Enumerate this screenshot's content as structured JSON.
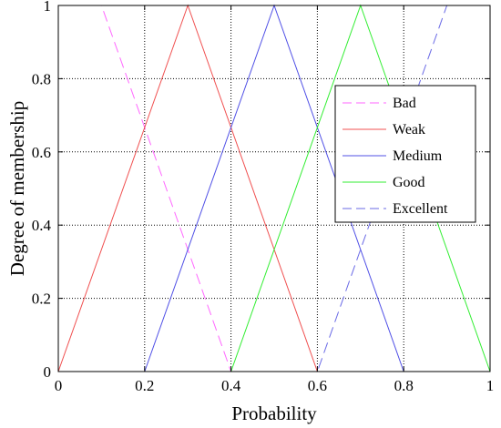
{
  "chart_data": {
    "type": "line",
    "title": "",
    "xlabel": "Probability",
    "ylabel": "Degree of membership",
    "xlim": [
      0,
      1
    ],
    "ylim": [
      0,
      1
    ],
    "x_ticks": [
      0,
      0.2,
      0.4,
      0.6,
      0.8,
      1
    ],
    "y_ticks": [
      0,
      0.2,
      0.4,
      0.6,
      0.8,
      1
    ],
    "x_tick_labels": [
      "0",
      "0.2",
      "0.4",
      "0.6",
      "0.8",
      "1"
    ],
    "y_tick_labels": [
      "0",
      "0.2",
      "0.4",
      "0.6",
      "0.8",
      "1"
    ],
    "grid": true,
    "legend_position": "right",
    "series": [
      {
        "name": "Bad",
        "color": "#ff66ff",
        "dash": "dashed",
        "x": [
          0,
          0.1,
          0.4,
          1
        ],
        "y": [
          1,
          1,
          0,
          0
        ]
      },
      {
        "name": "Weak",
        "color": "#f05050",
        "dash": "solid",
        "x": [
          0,
          0.3,
          0.6,
          1
        ],
        "y": [
          0,
          1,
          0,
          0
        ]
      },
      {
        "name": "Medium",
        "color": "#5050e6",
        "dash": "solid",
        "x": [
          0,
          0.2,
          0.5,
          0.8,
          1
        ],
        "y": [
          0,
          0,
          1,
          0,
          0
        ]
      },
      {
        "name": "Good",
        "color": "#33ee33",
        "dash": "solid",
        "x": [
          0,
          0.4,
          0.7,
          1
        ],
        "y": [
          0,
          0,
          1,
          0
        ]
      },
      {
        "name": "Excellent",
        "color": "#6a6ae6",
        "dash": "dashed",
        "x": [
          0,
          0.6,
          0.9,
          1
        ],
        "y": [
          0,
          0,
          1,
          1
        ]
      }
    ]
  }
}
